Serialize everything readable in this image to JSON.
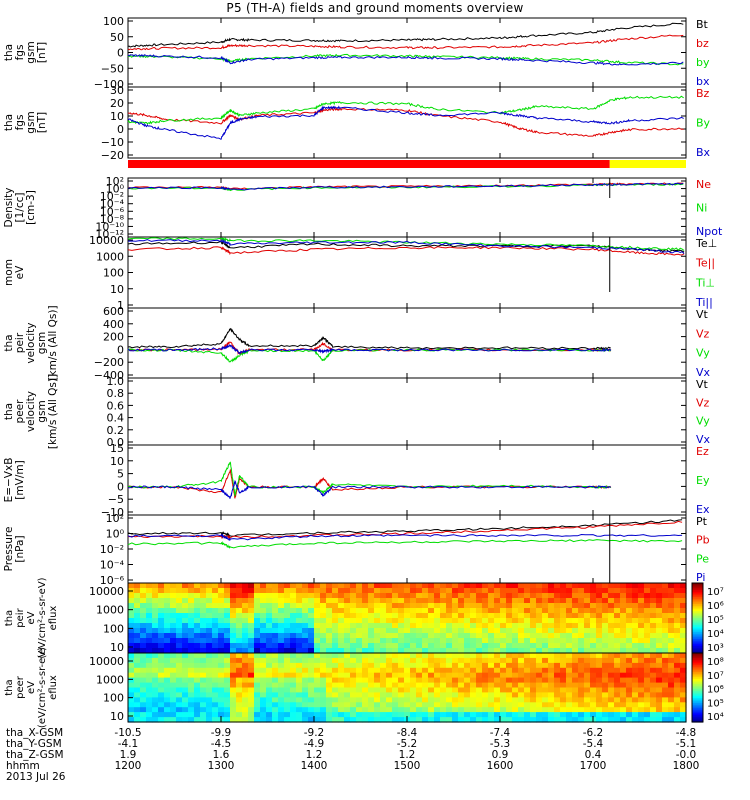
{
  "title": "P5 (TH-A) fields and ground moments overview",
  "colors": {
    "black": "#000000",
    "red": "#e00000",
    "green": "#00dd00",
    "blue": "#0000cc",
    "bar_red": "#ff0000",
    "bar_yellow": "#ffff00"
  },
  "footer": {
    "rows": [
      {
        "label": "tha_X-GSM",
        "values": [
          "-10.5",
          "-9.9",
          "-9.2",
          "-8.4",
          "-7.4",
          "-6.2",
          "-4.8"
        ]
      },
      {
        "label": "tha_Y-GSM",
        "values": [
          "-4.1",
          "-4.5",
          "-4.9",
          "-5.2",
          "-5.3",
          "-5.4",
          "-5.1"
        ]
      },
      {
        "label": "tha_Z-GSM",
        "values": [
          "1.9",
          "1.6",
          "1.2",
          "1.2",
          "0.9",
          "0.4",
          "-0.0"
        ]
      },
      {
        "label": "hhmm",
        "values": [
          "1200",
          "1300",
          "1400",
          "1500",
          "1600",
          "1700",
          "1800"
        ]
      }
    ],
    "date": "2013 Jul 26"
  },
  "chart_data": [
    {
      "type": "line",
      "ylabel": [
        "tha",
        "fgs",
        "gsm",
        "[nT]"
      ],
      "ticks": [
        "100",
        "50",
        "0",
        "−50",
        "−100"
      ],
      "ylim": [
        -100,
        100
      ],
      "legend": [
        "Bt",
        "bz",
        "by",
        "bx"
      ],
      "x": [
        1200,
        1230,
        1300,
        1310,
        1330,
        1400,
        1430,
        1500,
        1530,
        1600,
        1630,
        1700,
        1730,
        1800
      ],
      "series": [
        {
          "name": "Bt",
          "values": [
            18,
            22,
            30,
            38,
            36,
            35,
            34,
            36,
            38,
            42,
            48,
            58,
            70,
            85
          ]
        },
        {
          "name": "bz",
          "values": [
            10,
            12,
            14,
            20,
            20,
            18,
            16,
            14,
            14,
            16,
            20,
            28,
            38,
            52
          ]
        },
        {
          "name": "by",
          "values": [
            -10,
            -12,
            -18,
            -25,
            -18,
            -10,
            -8,
            -10,
            -12,
            -15,
            -18,
            -22,
            -28,
            -35
          ]
        },
        {
          "name": "bx",
          "values": [
            -8,
            -10,
            -15,
            -30,
            -20,
            -15,
            -14,
            -14,
            -16,
            -18,
            -22,
            -30,
            -35,
            -30
          ]
        }
      ]
    },
    {
      "type": "line",
      "ylabel": [
        "tha",
        "fgs",
        "gsm",
        "[nT]"
      ],
      "ticks": [
        "30",
        "20",
        "10",
        "0",
        "−10",
        "−20"
      ],
      "ylim": [
        -25,
        30
      ],
      "legend": [
        "Bz",
        "By",
        "Bx"
      ],
      "x": [
        1200,
        1220,
        1240,
        1300,
        1310,
        1320,
        1340,
        1400,
        1410,
        1430,
        1500,
        1530,
        1600,
        1620,
        1640,
        1700,
        1720,
        1740,
        1800
      ],
      "series": [
        {
          "name": "Bz",
          "values": [
            10,
            8,
            5,
            2,
            8,
            5,
            8,
            10,
            12,
            13,
            12,
            8,
            3,
            -2,
            -5,
            -8,
            -5,
            -3,
            -2
          ]
        },
        {
          "name": "By",
          "values": [
            3,
            2,
            4,
            6,
            12,
            8,
            10,
            13,
            17,
            18,
            17,
            13,
            10,
            12,
            15,
            13,
            20,
            22,
            22
          ]
        },
        {
          "name": "Bx",
          "values": [
            5,
            0,
            -3,
            -10,
            2,
            5,
            7,
            8,
            14,
            14,
            10,
            8,
            10,
            8,
            6,
            3,
            2,
            4,
            6
          ]
        }
      ]
    },
    {
      "type": "line",
      "ylabel": [
        "Density",
        "[1/cc]",
        "[cm-3]"
      ],
      "ticks": [
        "10²",
        "10⁰",
        "10⁻²",
        "10⁻⁴",
        "10⁻⁶",
        "10⁻⁸",
        "10⁻¹⁰",
        "10⁻¹²"
      ],
      "ylim": [
        -12,
        2
      ],
      "legend": [
        "Ne",
        "Ni",
        "Npot"
      ],
      "x": [
        1200,
        1300,
        1310,
        1400,
        1500,
        1600,
        1700,
        1730,
        1800
      ],
      "series": [
        {
          "name": "Ne",
          "values": [
            -0.2,
            -0.2,
            -0.6,
            -0.1,
            0,
            0.2,
            0.5,
            0.6,
            0.7
          ]
        },
        {
          "name": "Ni",
          "values": [
            -0.4,
            -0.4,
            -0.8,
            -0.3,
            -0.2,
            0,
            0.3,
            0.4,
            0.5
          ]
        },
        {
          "name": "Npot",
          "values": [
            -0.3,
            -0.3,
            -0.7,
            -0.2,
            -0.1,
            0.1,
            0.4,
            0.5,
            0.6
          ]
        }
      ]
    },
    {
      "type": "line",
      "ylabel": [
        "mom",
        "eV"
      ],
      "ticks": [
        "10000",
        "1000",
        "100",
        "10",
        "1"
      ],
      "ylim": [
        0,
        4
      ],
      "legend": [
        "Te⊥",
        "Te||",
        "Ti⊥",
        "Ti||"
      ],
      "x": [
        1200,
        1300,
        1310,
        1400,
        1500,
        1600,
        1700,
        1750,
        1800
      ],
      "series": [
        {
          "name": "Te⊥",
          "values": [
            3.6,
            3.7,
            3.4,
            3.6,
            3.5,
            3.5,
            3.5,
            3.3,
            3.2
          ]
        },
        {
          "name": "Te||",
          "values": [
            3.3,
            3.4,
            3.1,
            3.3,
            3.4,
            3.4,
            3.3,
            3.1,
            3.0
          ]
        },
        {
          "name": "Ti⊥",
          "values": [
            3.9,
            3.9,
            3.8,
            3.8,
            3.7,
            3.6,
            3.5,
            3.4,
            3.3
          ]
        },
        {
          "name": "Ti||",
          "values": [
            3.8,
            3.8,
            3.6,
            3.7,
            3.7,
            3.5,
            3.4,
            3.3,
            3.1
          ]
        }
      ]
    },
    {
      "type": "line",
      "ylabel": [
        "tha",
        "peir",
        "velocity",
        "gsm",
        "[km/s (All Qs)]"
      ],
      "ticks": [
        "600",
        "400",
        "200",
        "0",
        "−200",
        "−400"
      ],
      "ylim": [
        -400,
        600
      ],
      "legend": [
        "Vt",
        "Vz",
        "Vy",
        "Vx"
      ],
      "x": [
        1200,
        1250,
        1300,
        1310,
        1320,
        1330,
        1400,
        1410,
        1420,
        1500,
        1600,
        1700,
        1720
      ],
      "series": [
        {
          "name": "Vt",
          "values": [
            40,
            50,
            90,
            300,
            150,
            60,
            60,
            180,
            50,
            30,
            30,
            25,
            25
          ]
        },
        {
          "name": "Vz",
          "values": [
            0,
            5,
            10,
            120,
            -60,
            5,
            5,
            90,
            0,
            0,
            0,
            0,
            0
          ]
        },
        {
          "name": "Vy",
          "values": [
            0,
            -5,
            -40,
            -170,
            -80,
            -10,
            -10,
            -150,
            -5,
            0,
            0,
            0,
            0
          ]
        },
        {
          "name": "Vx",
          "values": [
            0,
            0,
            20,
            60,
            -40,
            0,
            0,
            -20,
            0,
            0,
            0,
            0,
            0
          ]
        }
      ]
    },
    {
      "type": "line",
      "ylabel": [
        "tha",
        "peer",
        "velocity",
        "gsm",
        "[km/s (All Qs)]"
      ],
      "ticks": [
        "1.0",
        "0.8",
        "0.6",
        "0.4",
        "0.2",
        "0.0"
      ],
      "ylim": [
        0,
        1
      ],
      "legend": [
        "Vt",
        "Vz",
        "Vy",
        "Vx"
      ],
      "series": []
    },
    {
      "type": "line",
      "ylabel": [
        "E=−VxB",
        "[mV/m]"
      ],
      "ticks": [
        "15",
        "10",
        "5",
        "0",
        "−5",
        "−10"
      ],
      "ylim": [
        -10,
        15
      ],
      "legend": [
        "Ez",
        "Ey",
        "Ex"
      ],
      "x": [
        1200,
        1250,
        1300,
        1310,
        1315,
        1320,
        1330,
        1400,
        1410,
        1420,
        1500,
        1600,
        1700,
        1720
      ],
      "series": [
        {
          "name": "Ez",
          "values": [
            0,
            0,
            -2,
            6,
            -4,
            3,
            0,
            0,
            3,
            -1,
            0,
            0,
            0,
            0
          ]
        },
        {
          "name": "Ey",
          "values": [
            0,
            0,
            2,
            9,
            -3,
            4,
            0,
            0,
            -2,
            1,
            0,
            0.5,
            0,
            0
          ]
        },
        {
          "name": "Ex",
          "values": [
            0,
            0,
            -1,
            -4,
            2,
            -2,
            0,
            0,
            -3,
            0,
            0,
            0,
            0,
            0
          ]
        }
      ]
    },
    {
      "type": "line",
      "ylabel": [
        "Pressure",
        "[nPa]"
      ],
      "ticks": [
        "10²",
        "10⁰",
        "10⁻²",
        "10⁻⁴",
        "10⁻⁶"
      ],
      "ylim": [
        -6,
        2
      ],
      "legend": [
        "Pt",
        "Pb",
        "Pe",
        "Pi"
      ],
      "x": [
        1200,
        1300,
        1310,
        1400,
        1500,
        1600,
        1700,
        1800
      ],
      "series": [
        {
          "name": "Pt",
          "values": [
            -0.2,
            -0.1,
            -0.4,
            -0.1,
            0.1,
            0.4,
            0.8,
            1.4
          ]
        },
        {
          "name": "Pb",
          "values": [
            -0.6,
            -0.5,
            -0.6,
            -0.4,
            -0.2,
            0.2,
            0.6,
            1.2
          ]
        },
        {
          "name": "Pe",
          "values": [
            -1.4,
            -1.3,
            -1.8,
            -1.3,
            -1.2,
            -1.1,
            -1.0,
            -1.1
          ]
        },
        {
          "name": "Pi",
          "values": [
            -0.5,
            -0.4,
            -0.9,
            -0.5,
            -0.4,
            -0.4,
            -0.4,
            -0.4
          ]
        }
      ]
    },
    {
      "type": "heatmap",
      "ylabel": [
        "tha",
        "peir",
        "eV",
        "(eV/cm²-s-sr-eV)",
        "eflux"
      ],
      "ticks": [
        "10000",
        "1000",
        "100",
        "10"
      ],
      "colorbar": [
        "10⁷",
        "10⁶",
        "10⁵",
        "10⁴",
        "10³"
      ]
    },
    {
      "type": "heatmap",
      "ylabel": [
        "tha",
        "peer",
        "eV",
        "(eV/cm²-s-sr-eV)",
        "eflux"
      ],
      "ticks": [
        "10000",
        "1000",
        "100",
        "10"
      ],
      "colorbar": [
        "10⁸",
        "10⁷",
        "10⁶",
        "10⁵",
        "10⁴"
      ]
    }
  ]
}
